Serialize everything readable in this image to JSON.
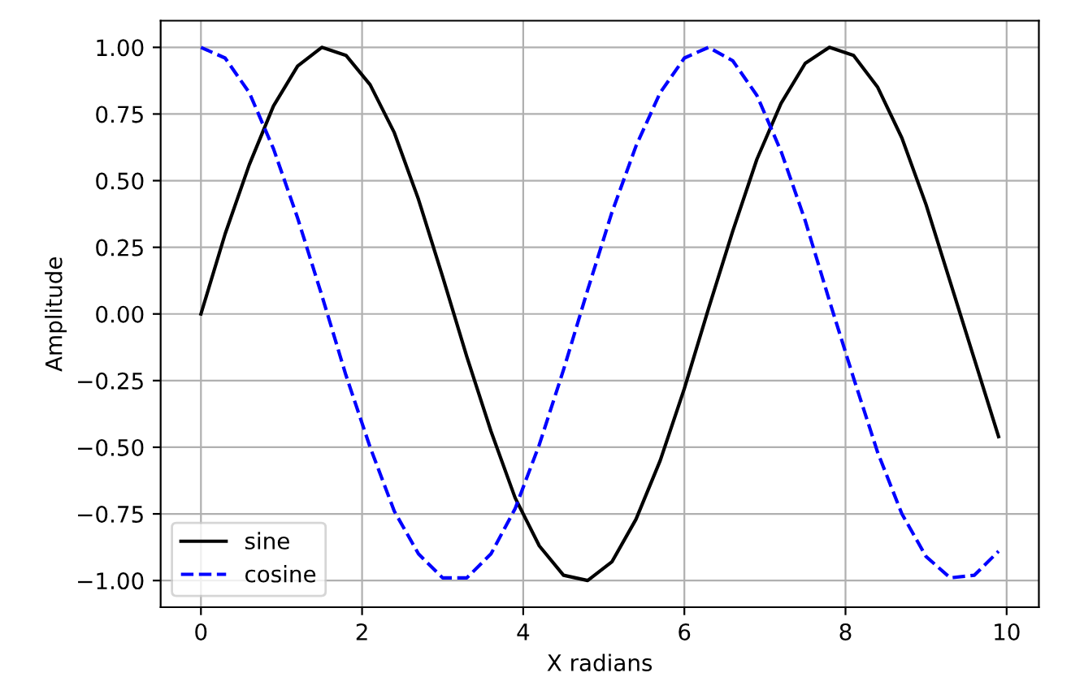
{
  "chart_data": {
    "type": "line",
    "xlabel": "X radians",
    "ylabel": "Amplitude",
    "x": [
      0,
      0.3,
      0.6,
      0.9,
      1.2,
      1.5,
      1.8,
      2.1,
      2.4,
      2.7,
      3.0,
      3.3,
      3.6,
      3.9,
      4.2,
      4.5,
      4.8,
      5.1,
      5.4,
      5.7,
      6.0,
      6.3,
      6.6,
      6.9,
      7.2,
      7.5,
      7.8,
      8.1,
      8.4,
      8.7,
      9.0,
      9.3,
      9.6,
      9.9
    ],
    "series": [
      {
        "name": "sine",
        "color": "#000000",
        "line_style": "solid",
        "values": [
          0,
          0.3,
          0.56,
          0.78,
          0.93,
          1.0,
          0.97,
          0.86,
          0.68,
          0.43,
          0.14,
          -0.16,
          -0.44,
          -0.69,
          -0.87,
          -0.98,
          -1.0,
          -0.93,
          -0.77,
          -0.55,
          -0.28,
          0.02,
          0.31,
          0.58,
          0.79,
          0.94,
          1.0,
          0.97,
          0.85,
          0.66,
          0.41,
          0.12,
          -0.17,
          -0.46
        ]
      },
      {
        "name": "cosine",
        "color": "#0000ff",
        "line_style": "dashed",
        "values": [
          1.0,
          0.96,
          0.83,
          0.62,
          0.36,
          0.07,
          -0.23,
          -0.5,
          -0.74,
          -0.9,
          -0.99,
          -0.99,
          -0.9,
          -0.73,
          -0.49,
          -0.21,
          0.09,
          0.38,
          0.63,
          0.83,
          0.96,
          1.0,
          0.95,
          0.82,
          0.61,
          0.35,
          0.05,
          -0.24,
          -0.52,
          -0.75,
          -0.91,
          -0.99,
          -0.98,
          -0.89
        ]
      }
    ],
    "xlim": [
      -0.5,
      10.4
    ],
    "xticks": [
      0,
      2,
      4,
      6,
      8,
      10
    ],
    "ylim": [
      -1.1,
      1.1
    ],
    "yticks": [
      {
        "value": -1,
        "label": "−1.00"
      },
      {
        "value": -0.75,
        "label": "−0.75"
      },
      {
        "value": -0.5,
        "label": "−0.50"
      },
      {
        "value": -0.25,
        "label": "−0.25"
      },
      {
        "value": 0,
        "label": "0.00"
      },
      {
        "value": 0.25,
        "label": "0.25"
      },
      {
        "value": 0.5,
        "label": "0.50"
      },
      {
        "value": 0.75,
        "label": "0.75"
      },
      {
        "value": 1,
        "label": "1.00"
      }
    ],
    "grid": true,
    "legend": "lower left",
    "marker": "none"
  }
}
